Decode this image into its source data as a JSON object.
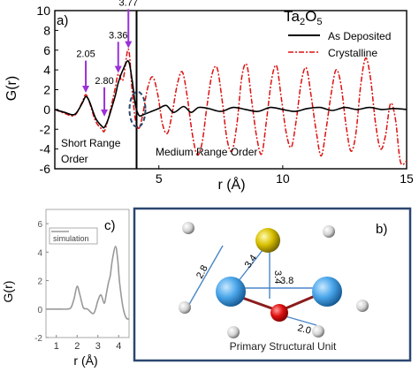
{
  "chart_data": [
    {
      "panel": "a)",
      "type": "line",
      "title": "Ta2O5",
      "title_main": "Ta",
      "title_sub1": "2",
      "title_mid": "O",
      "title_sub2": "5",
      "xlabel": "r (Å)",
      "ylabel": "G(r)",
      "xlim": [
        0.8,
        15
      ],
      "ylim": [
        -6,
        10
      ],
      "xticks": [
        5,
        10,
        15
      ],
      "xtick_labels": [
        "5",
        "10",
        "15"
      ],
      "yticks": [
        -6,
        -4,
        -2,
        0,
        2,
        4,
        6,
        8,
        10
      ],
      "ytick_labels": [
        "-6",
        "-4",
        "-2",
        "0",
        "2",
        "4",
        "6",
        "8",
        "10"
      ],
      "grid": false,
      "legend_position": "top-right",
      "series": [
        {
          "name": "As Deposited",
          "color": "#000000",
          "style": "solid",
          "x": [
            0.8,
            1.2,
            1.6,
            1.9,
            2.05,
            2.2,
            2.45,
            2.7,
            2.8,
            2.95,
            3.1,
            3.25,
            3.36,
            3.55,
            3.77,
            3.92,
            4.05,
            4.2,
            4.4,
            4.7,
            5.0,
            5.3,
            5.6,
            6.0,
            6.3,
            6.6,
            7.0,
            7.5,
            8.0,
            8.5,
            9.0,
            9.5,
            10.0,
            10.5,
            11.0,
            11.5,
            12.0,
            12.5,
            13.0,
            13.5,
            14.0,
            14.5,
            15.0
          ],
          "y": [
            0,
            -0.3,
            -0.5,
            0.6,
            1.3,
            0.8,
            -0.9,
            -1.7,
            -1.8,
            -1.0,
            0.2,
            1.5,
            2.7,
            4.0,
            4.9,
            3.0,
            0.5,
            -0.6,
            -0.5,
            -0.2,
            0.1,
            0.4,
            -0.3,
            0.3,
            -0.3,
            0.2,
            0.1,
            -0.2,
            0.2,
            0.0,
            -0.2,
            0.2,
            0.0,
            -0.2,
            0.1,
            0.2,
            -0.1,
            0.2,
            0.0,
            0.2,
            0.0,
            0.1,
            0.0
          ]
        },
        {
          "name": "Crystalline",
          "color": "#dd1111",
          "style": "dash-dot",
          "x": [
            0.8,
            1.2,
            1.6,
            1.9,
            2.05,
            2.2,
            2.45,
            2.7,
            2.8,
            2.95,
            3.1,
            3.25,
            3.36,
            3.55,
            3.77,
            3.92,
            4.05,
            4.2,
            4.35,
            4.55,
            4.75,
            4.95,
            5.15,
            5.35,
            5.55,
            5.75,
            5.95,
            6.15,
            6.35,
            6.55,
            6.75,
            6.95,
            7.15,
            7.35,
            7.55,
            7.75,
            7.95,
            8.15,
            8.35,
            8.55,
            8.75,
            8.95,
            9.15,
            9.35,
            9.55,
            9.75,
            9.95,
            10.15,
            10.35,
            10.55,
            10.75,
            10.95,
            11.15,
            11.35,
            11.55,
            11.75,
            11.95,
            12.15,
            12.35,
            12.55,
            12.75,
            12.95,
            13.15,
            13.35,
            13.55,
            13.75,
            13.95,
            14.15,
            14.35,
            14.55,
            14.75,
            15.0
          ],
          "y": [
            0,
            -0.4,
            -0.6,
            0.7,
            1.5,
            0.7,
            -1.2,
            -2.0,
            -2.2,
            -1.0,
            0.6,
            2.3,
            3.6,
            3.0,
            6.1,
            2.0,
            -1.0,
            -1.9,
            -0.5,
            2.2,
            3.3,
            1.6,
            -1.5,
            -2.4,
            -0.2,
            2.6,
            3.8,
            1.2,
            -2.5,
            -4.6,
            -3.3,
            0.5,
            3.6,
            4.2,
            1.0,
            -3.0,
            -4.2,
            -1.5,
            3.3,
            4.5,
            0.8,
            -2.8,
            -4.5,
            -1.0,
            3.0,
            4.4,
            1.0,
            -2.5,
            -3.8,
            -1.0,
            2.8,
            4.2,
            1.3,
            -2.2,
            -4.7,
            -2.0,
            1.5,
            4.0,
            2.5,
            -1.5,
            -4.2,
            -2.5,
            2.5,
            5.2,
            3.0,
            -1.5,
            -4.0,
            -2.6,
            0.6,
            -1.0,
            -5.3,
            -5.2
          ]
        }
      ],
      "peak_annotations": [
        {
          "label": "3.77",
          "x": 3.77,
          "y_peak": 6.1,
          "y_text": 10.5
        },
        {
          "label": "3.36",
          "x": 3.36,
          "y_peak": 3.6,
          "y_text": 7.2
        },
        {
          "label": "2.80",
          "x": 2.8,
          "y_peak": -0.8,
          "y_text": 2.6
        },
        {
          "label": "2.05",
          "x": 2.05,
          "y_peak": 1.6,
          "y_text": 5.3
        }
      ],
      "divider_x": 4.1,
      "region_labels": {
        "short_range_line1": "Short Range",
        "short_range_line2": "Order",
        "medium_range": "Medium Range Order"
      }
    },
    {
      "panel": "c)",
      "type": "line",
      "xlabel": "r (Å)",
      "ylabel": "G(r)",
      "xlim": [
        0.5,
        4.5
      ],
      "ylim": [
        -2,
        7
      ],
      "xticks": [
        1,
        2,
        3,
        4
      ],
      "xtick_labels": [
        "1",
        "2",
        "3",
        "4"
      ],
      "yticks": [
        -2,
        0,
        2,
        4,
        6
      ],
      "ytick_labels": [
        "-2",
        "0",
        "2",
        "4",
        "6"
      ],
      "legend_position": "top-left",
      "series": [
        {
          "name": "simulation",
          "color": "#999999",
          "style": "solid",
          "x": [
            0.5,
            1.0,
            1.5,
            1.7,
            1.85,
            2.0,
            2.15,
            2.3,
            2.5,
            2.8,
            3.0,
            3.15,
            3.3,
            3.4,
            3.5,
            3.6,
            3.7,
            3.85,
            3.95,
            4.05,
            4.2,
            4.35,
            4.5
          ],
          "y": [
            0,
            0,
            0,
            0.1,
            0.7,
            1.6,
            0.9,
            0.1,
            0.0,
            -0.3,
            0.6,
            1.0,
            0.4,
            1.0,
            1.8,
            2.4,
            3.5,
            4.4,
            3.5,
            1.8,
            0.2,
            -0.6,
            -0.7
          ]
        }
      ]
    }
  ],
  "structure_panel": {
    "label": "b)",
    "caption": "Primary Structural Unit",
    "distances": [
      "2.8",
      "3.4",
      "3.4",
      "3.8",
      "2.0"
    ]
  }
}
